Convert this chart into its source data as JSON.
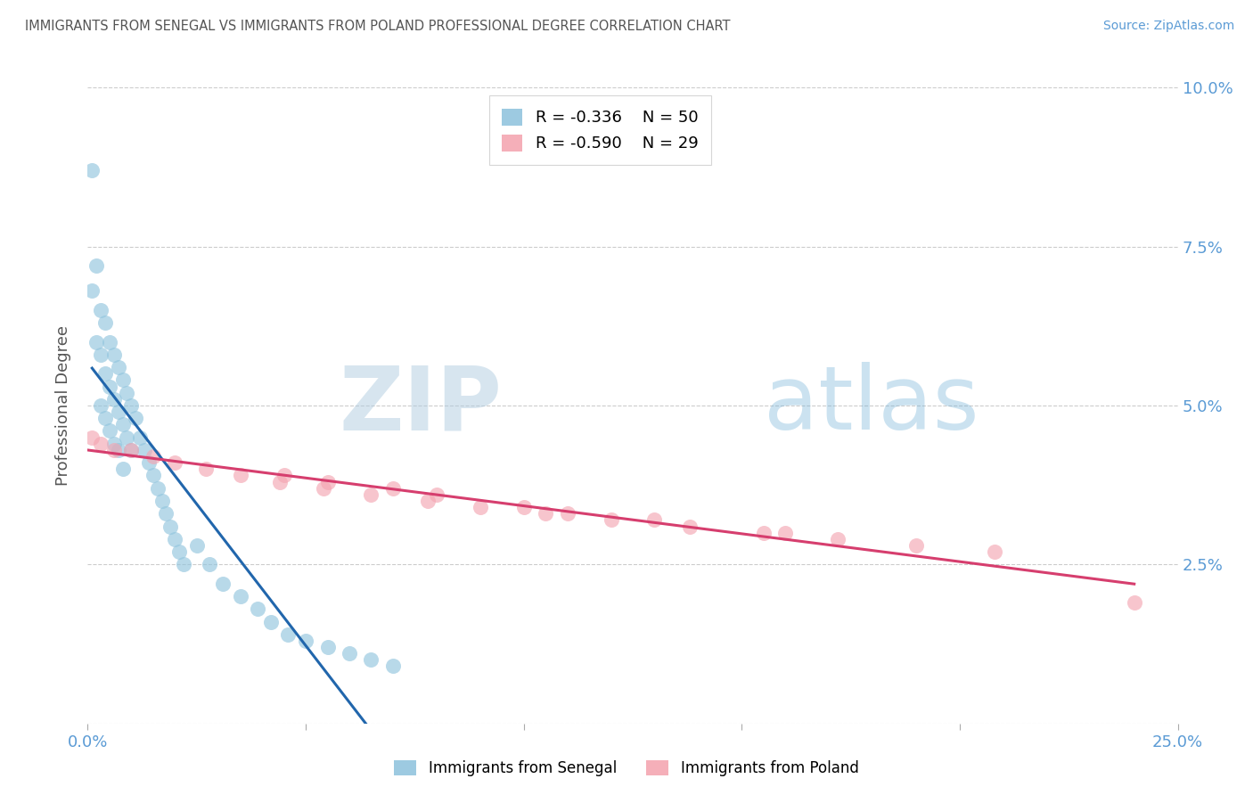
{
  "title": "IMMIGRANTS FROM SENEGAL VS IMMIGRANTS FROM POLAND PROFESSIONAL DEGREE CORRELATION CHART",
  "source": "Source: ZipAtlas.com",
  "ylabel": "Professional Degree",
  "xlim": [
    0.0,
    0.25
  ],
  "ylim": [
    0.0,
    0.1
  ],
  "xticks": [
    0.0,
    0.05,
    0.1,
    0.15,
    0.2,
    0.25
  ],
  "yticks": [
    0.0,
    0.025,
    0.05,
    0.075,
    0.1
  ],
  "color_senegal": "#92c5de",
  "color_poland": "#f4a6b2",
  "trendline_senegal": "#2166ac",
  "trendline_poland": "#d63e6e",
  "legend_r1": "-0.336",
  "legend_n1": "50",
  "legend_r2": "-0.590",
  "legend_n2": "29",
  "senegal_x": [
    0.001,
    0.001,
    0.002,
    0.002,
    0.003,
    0.003,
    0.003,
    0.004,
    0.004,
    0.004,
    0.005,
    0.005,
    0.005,
    0.006,
    0.006,
    0.006,
    0.007,
    0.007,
    0.007,
    0.008,
    0.008,
    0.008,
    0.009,
    0.009,
    0.01,
    0.01,
    0.011,
    0.012,
    0.013,
    0.014,
    0.015,
    0.016,
    0.017,
    0.018,
    0.019,
    0.02,
    0.021,
    0.022,
    0.025,
    0.028,
    0.031,
    0.035,
    0.039,
    0.042,
    0.046,
    0.05,
    0.055,
    0.06,
    0.065,
    0.07
  ],
  "senegal_y": [
    0.087,
    0.068,
    0.072,
    0.06,
    0.065,
    0.058,
    0.05,
    0.063,
    0.055,
    0.048,
    0.06,
    0.053,
    0.046,
    0.058,
    0.051,
    0.044,
    0.056,
    0.049,
    0.043,
    0.054,
    0.047,
    0.04,
    0.052,
    0.045,
    0.05,
    0.043,
    0.048,
    0.045,
    0.043,
    0.041,
    0.039,
    0.037,
    0.035,
    0.033,
    0.031,
    0.029,
    0.027,
    0.025,
    0.028,
    0.025,
    0.022,
    0.02,
    0.018,
    0.016,
    0.014,
    0.013,
    0.012,
    0.011,
    0.01,
    0.009
  ],
  "poland_x": [
    0.001,
    0.003,
    0.006,
    0.01,
    0.015,
    0.02,
    0.027,
    0.035,
    0.044,
    0.054,
    0.065,
    0.078,
    0.09,
    0.105,
    0.12,
    0.138,
    0.155,
    0.172,
    0.19,
    0.208,
    0.055,
    0.08,
    0.1,
    0.13,
    0.16,
    0.045,
    0.07,
    0.11,
    0.24
  ],
  "poland_y": [
    0.045,
    0.044,
    0.043,
    0.043,
    0.042,
    0.041,
    0.04,
    0.039,
    0.038,
    0.037,
    0.036,
    0.035,
    0.034,
    0.033,
    0.032,
    0.031,
    0.03,
    0.029,
    0.028,
    0.027,
    0.038,
    0.036,
    0.034,
    0.032,
    0.03,
    0.039,
    0.037,
    0.033,
    0.019
  ]
}
